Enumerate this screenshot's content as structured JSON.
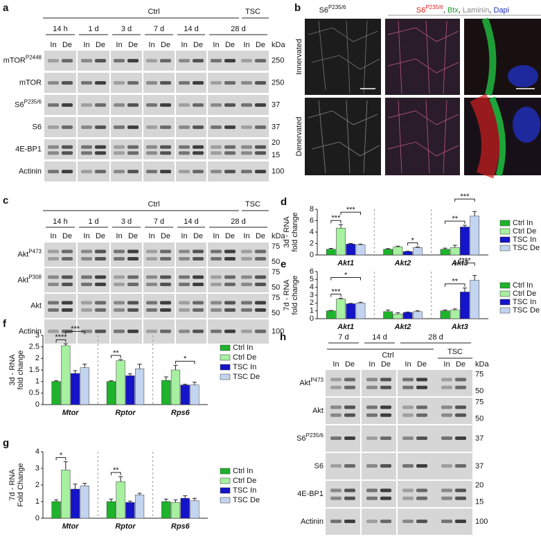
{
  "figure": {
    "panel_a": {
      "label": "a",
      "groups": [
        "Ctrl",
        "TSC"
      ],
      "timepoints": [
        "14 h",
        "1 d",
        "3 d",
        "7 d",
        "14 d",
        "28 d"
      ],
      "lanes": [
        "In",
        "De"
      ],
      "kda_title": "kDa",
      "rows": [
        {
          "name": "mTOR",
          "sup": "P2448",
          "kda": [
            "250"
          ]
        },
        {
          "name": "mTOR",
          "kda": [
            "250"
          ]
        },
        {
          "name": "S6",
          "sup": "P235/6",
          "kda": [
            "37"
          ]
        },
        {
          "name": "S6",
          "kda": [
            "37"
          ]
        },
        {
          "name": "4E-BP1",
          "kda": [
            "20",
            "15"
          ]
        },
        {
          "name": "Actinin",
          "kda": [
            "100"
          ]
        }
      ]
    },
    "panel_b": {
      "label": "b",
      "col1": [
        {
          "text": "S6"
        },
        {
          "text": "P235/6",
          "sup": true
        }
      ],
      "col2": [
        {
          "text": "S6",
          "color": "#e0201c"
        },
        {
          "text": "P235/6",
          "sup": true,
          "color": "#e0201c"
        },
        {
          "text": ", "
        },
        {
          "text": "Btx",
          "color": "#1a9a2a"
        },
        {
          "text": ", "
        },
        {
          "text": "Laminin",
          "color": "#888888"
        },
        {
          "text": ", "
        },
        {
          "text": "Dapi",
          "color": "#2030c0"
        }
      ],
      "rows": [
        "Innervated",
        "Denervated"
      ]
    },
    "panel_c": {
      "label": "c",
      "groups": [
        "Ctrl",
        "TSC"
      ],
      "timepoints": [
        "14 h",
        "1 d",
        "3 d",
        "7 d",
        "14 d",
        "28 d"
      ],
      "lanes": [
        "In",
        "De"
      ],
      "kda_title": "kDa",
      "rows": [
        {
          "name": "Akt",
          "sup": "P473",
          "kda": [
            "75",
            "50"
          ]
        },
        {
          "name": "Akt",
          "sup": "P308",
          "kda": [
            "75",
            "50"
          ]
        },
        {
          "name": "Akt",
          "kda": [
            "75",
            "50"
          ]
        },
        {
          "name": "Actinin",
          "kda": [
            "100"
          ]
        }
      ]
    },
    "panel_h": {
      "label": "h",
      "groups": [
        "Ctrl",
        "TSC"
      ],
      "timepoints": [
        "7 d",
        "14 d",
        "28 d"
      ],
      "lanes": [
        "In",
        "De"
      ],
      "kda_title": "kDa",
      "rows": [
        {
          "name": "Akt",
          "sup": "P473",
          "kda": [
            "75",
            "50"
          ]
        },
        {
          "name": "Akt",
          "kda": [
            "75",
            "50"
          ]
        },
        {
          "name": "S6",
          "sup": "P235/6",
          "kda": [
            "37"
          ]
        },
        {
          "name": "S6",
          "kda": [
            "37"
          ]
        },
        {
          "name": "4E-BP1",
          "kda": [
            "20",
            "15"
          ]
        },
        {
          "name": "Actinin",
          "kda": [
            "100"
          ]
        }
      ]
    }
  },
  "chart_data": [
    {
      "type": "bar",
      "panel": "d",
      "y_label": [
        "3d - RNA",
        "fold change"
      ],
      "categories": [
        "Akt1",
        "Akt2",
        "Akt3"
      ],
      "ylim": [
        0,
        8
      ],
      "yticks": [
        0,
        2,
        4,
        6,
        8
      ],
      "series": [
        {
          "name": "Ctrl In",
          "color": "#1db32b",
          "values": [
            1.0,
            1.0,
            1.0
          ],
          "errors": [
            0.15,
            0.1,
            0.2
          ]
        },
        {
          "name": "Ctrl De",
          "color": "#a6f0a0",
          "values": [
            4.7,
            1.4,
            1.3
          ],
          "errors": [
            0.6,
            0.15,
            0.4
          ]
        },
        {
          "name": "TSC In",
          "color": "#1414c8",
          "values": [
            1.9,
            0.6,
            4.9
          ],
          "errors": [
            0.1,
            0.05,
            0.3
          ]
        },
        {
          "name": "TSC De",
          "color": "#c3d4f0",
          "values": [
            1.8,
            1.3,
            6.8
          ],
          "errors": [
            0.1,
            0.1,
            0.8
          ]
        }
      ],
      "annotations": [
        {
          "text": "***"
        },
        {
          "text": "***"
        },
        {
          "text": "*"
        },
        {
          "text": "**"
        },
        {
          "text": "***"
        }
      ]
    },
    {
      "type": "bar",
      "panel": "e",
      "y_label": [
        "7d - RNA",
        "fold change"
      ],
      "categories": [
        "Akt1",
        "Akt2",
        "Akt3"
      ],
      "ylim": [
        0,
        6
      ],
      "yticks": [
        0,
        1,
        2,
        3,
        4,
        5,
        6
      ],
      "series": [
        {
          "name": "Ctrl In",
          "color": "#1db32b",
          "values": [
            1.0,
            0.9,
            1.0
          ],
          "errors": [
            0.05,
            0.2,
            0.1
          ]
        },
        {
          "name": "Ctrl De",
          "color": "#a6f0a0",
          "values": [
            2.5,
            0.6,
            1.1
          ],
          "errors": [
            0.1,
            0.15,
            0.15
          ]
        },
        {
          "name": "TSC In",
          "color": "#1414c8",
          "values": [
            1.9,
            0.8,
            3.4
          ],
          "errors": [
            0.05,
            0.05,
            0.5
          ]
        },
        {
          "name": "TSC De",
          "color": "#c3d4f0",
          "values": [
            2.0,
            0.9,
            4.9
          ],
          "errors": [
            0.1,
            0.1,
            0.6
          ]
        }
      ],
      "annotations": [
        {
          "text": "***"
        },
        {
          "text": "*"
        },
        {
          "text": "**"
        },
        {
          "text": "****"
        }
      ]
    },
    {
      "type": "bar",
      "panel": "f",
      "y_label": [
        "3d - RNA",
        "fold change"
      ],
      "categories": [
        "Mtor",
        "Rptor",
        "Rps6"
      ],
      "ylim": [
        0,
        3
      ],
      "yticks": [
        0,
        0.5,
        1,
        1.5,
        2,
        2.5,
        3
      ],
      "series": [
        {
          "name": "Ctrl In",
          "color": "#1db32b",
          "values": [
            1.0,
            1.0,
            1.05
          ],
          "errors": [
            0.03,
            0.03,
            0.15
          ]
        },
        {
          "name": "Ctrl De",
          "color": "#a6f0a0",
          "values": [
            2.55,
            1.9,
            1.5
          ],
          "errors": [
            0.08,
            0.05,
            0.2
          ]
        },
        {
          "name": "TSC In",
          "color": "#1414c8",
          "values": [
            1.35,
            1.25,
            0.85
          ],
          "errors": [
            0.12,
            0.08,
            0.03
          ]
        },
        {
          "name": "TSC De",
          "color": "#c3d4f0",
          "values": [
            1.6,
            1.55,
            0.85
          ],
          "errors": [
            0.15,
            0.2,
            0.12
          ]
        }
      ],
      "annotations": [
        {
          "text": "****"
        },
        {
          "text": "***"
        },
        {
          "text": "**"
        },
        {
          "text": "*"
        }
      ]
    },
    {
      "type": "bar",
      "panel": "g",
      "y_label": [
        "7d - RNA",
        "Fold Change"
      ],
      "categories": [
        "Mtor",
        "Rptor",
        "Rps6"
      ],
      "ylim": [
        0,
        4
      ],
      "yticks": [
        0,
        1,
        2,
        3,
        4
      ],
      "series": [
        {
          "name": "Ctrl In",
          "color": "#1db32b",
          "values": [
            1.0,
            1.0,
            1.0
          ],
          "errors": [
            0.1,
            0.15,
            0.15
          ]
        },
        {
          "name": "Ctrl De",
          "color": "#a6f0a0",
          "values": [
            2.9,
            2.2,
            0.95
          ],
          "errors": [
            0.5,
            0.3,
            0.15
          ]
        },
        {
          "name": "TSC In",
          "color": "#1414c8",
          "values": [
            1.75,
            0.95,
            1.2
          ],
          "errors": [
            0.3,
            0.08,
            0.15
          ]
        },
        {
          "name": "TSC De",
          "color": "#c3d4f0",
          "values": [
            1.95,
            1.4,
            1.05
          ],
          "errors": [
            0.15,
            0.1,
            0.15
          ]
        }
      ],
      "annotations": [
        {
          "text": "*"
        },
        {
          "text": "**"
        }
      ]
    }
  ]
}
